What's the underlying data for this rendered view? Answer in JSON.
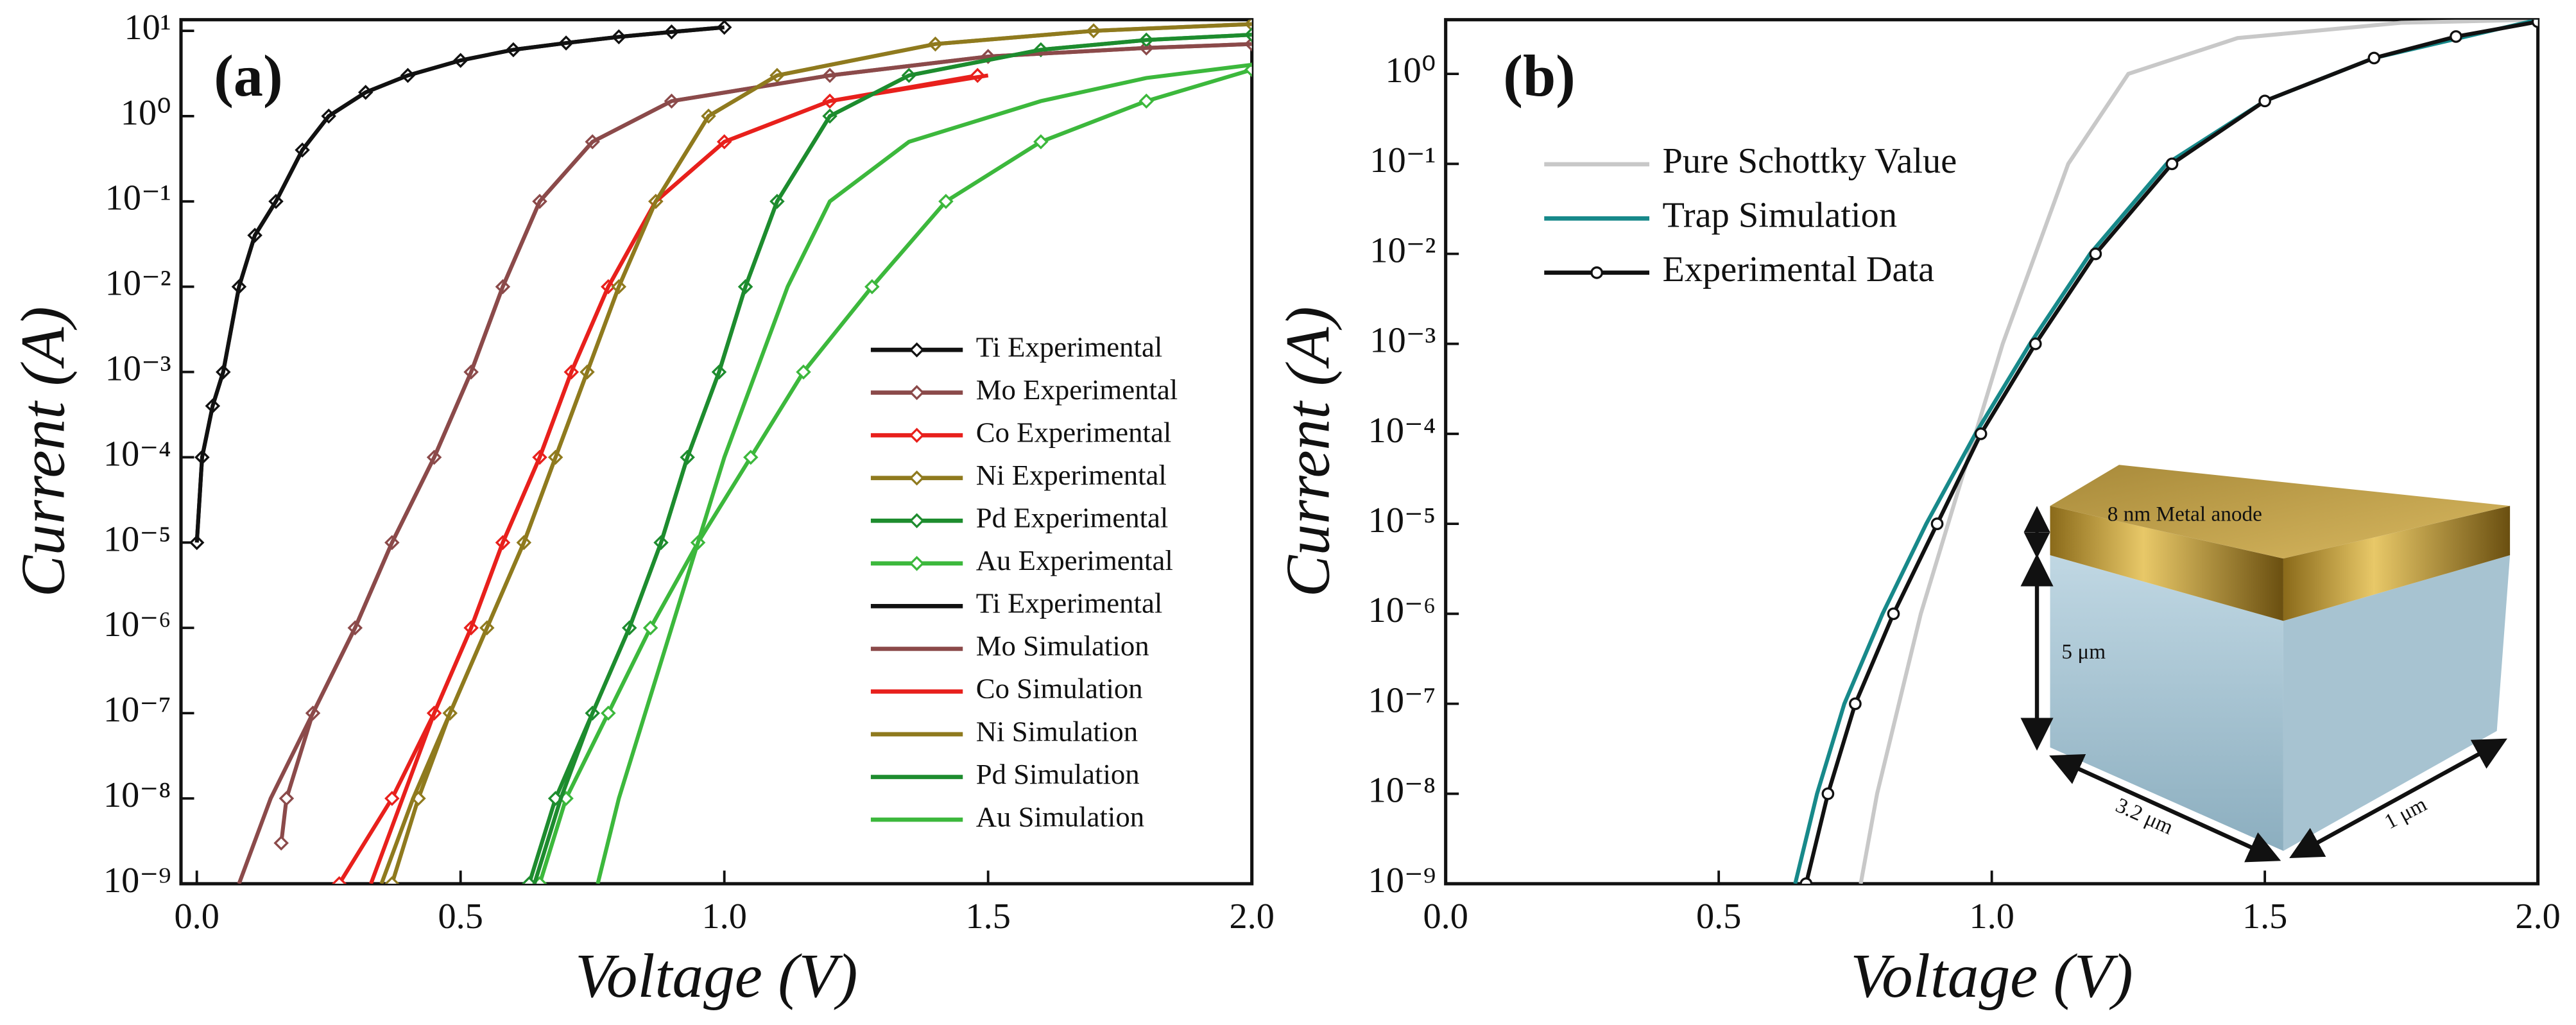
{
  "chart_data": [
    {
      "type": "line",
      "title": "(a)",
      "x_label": "Voltage (V)",
      "y_label": "Current (A)",
      "log_y": true,
      "xlim": [
        -0.03,
        2.0
      ],
      "ylim": [
        1e-09,
        13.5
      ],
      "xticks": [
        {
          "value": 0,
          "label": "0.0"
        },
        0.5,
        {
          "value": 1,
          "label": "1.0"
        },
        1.5,
        {
          "value": 2,
          "label": "2.0"
        }
      ],
      "yticks": [
        {
          "value": 1e-09,
          "label": "10⁻⁹"
        },
        {
          "value": 1e-08,
          "label": "10⁻⁸"
        },
        {
          "value": 1e-07,
          "label": "10⁻⁷"
        },
        {
          "value": 1e-06,
          "label": "10⁻⁶"
        },
        {
          "value": 1e-05,
          "label": "10⁻⁵"
        },
        {
          "value": 0.0001,
          "label": "10⁻⁴"
        },
        {
          "value": 0.001,
          "label": "10⁻³"
        },
        {
          "value": 0.01,
          "label": "10⁻²"
        },
        {
          "value": 0.1,
          "label": "10⁻¹"
        },
        {
          "value": 1,
          "label": "10⁰"
        },
        {
          "value": 10,
          "label": "10¹"
        }
      ],
      "legend": "right",
      "series": [
        {
          "name": "Ti Experimental",
          "color": "#111111",
          "marker": "diamond",
          "x": [
            0,
            0.01,
            0.03,
            0.05,
            0.08,
            0.11,
            0.15,
            0.2,
            0.25,
            0.32,
            0.4,
            0.5,
            0.6,
            0.7,
            0.8,
            0.9,
            1.0
          ],
          "values": [
            1e-05,
            0.0001,
            0.0004,
            0.001,
            0.01,
            0.04,
            0.1,
            0.4,
            1,
            1.9,
            3,
            4.5,
            6,
            7.2,
            8.5,
            9.7,
            11
          ]
        },
        {
          "name": "Mo Experimental",
          "color": "#8b4a4a",
          "marker": "diamond",
          "x": [
            0.16,
            0.17,
            0.22,
            0.3,
            0.37,
            0.45,
            0.52,
            0.58,
            0.65,
            0.75,
            0.9,
            1.2,
            1.5,
            1.8,
            2.0
          ],
          "values": [
            3e-09,
            1e-08,
            1e-07,
            1e-06,
            1e-05,
            0.0001,
            0.001,
            0.01,
            0.1,
            0.5,
            1.5,
            3,
            5,
            6.3,
            7
          ]
        },
        {
          "name": "Co Experimental",
          "color": "#e8201c",
          "marker": "diamond",
          "x": [
            0.27,
            0.37,
            0.45,
            0.52,
            0.58,
            0.65,
            0.71,
            0.78,
            0.87,
            1.0,
            1.2,
            1.48
          ],
          "values": [
            1e-09,
            1e-08,
            1e-07,
            1e-06,
            1e-05,
            0.0001,
            0.001,
            0.01,
            0.1,
            0.5,
            1.5,
            3
          ]
        },
        {
          "name": "Ni Experimental",
          "color": "#8f7a1e",
          "marker": "diamond",
          "x": [
            0.37,
            0.42,
            0.48,
            0.55,
            0.62,
            0.68,
            0.74,
            0.8,
            0.87,
            0.97,
            1.1,
            1.4,
            1.7,
            2.0
          ],
          "values": [
            1e-09,
            1e-08,
            1e-07,
            1e-06,
            1e-05,
            0.0001,
            0.001,
            0.01,
            0.1,
            1,
            3,
            7,
            10,
            12
          ]
        },
        {
          "name": "Pd Experimental",
          "color": "#1d8c2e",
          "marker": "diamond",
          "x": [
            0.63,
            0.68,
            0.75,
            0.82,
            0.88,
            0.93,
            0.99,
            1.04,
            1.1,
            1.2,
            1.35,
            1.6,
            1.8,
            2.0
          ],
          "values": [
            1e-09,
            1e-08,
            1e-07,
            1e-06,
            1e-05,
            0.0001,
            0.001,
            0.01,
            0.1,
            1,
            3,
            6,
            7.8,
            9
          ]
        },
        {
          "name": "Au Experimental",
          "color": "#3cb83c",
          "marker": "diamond",
          "x": [
            0.65,
            0.7,
            0.78,
            0.86,
            0.95,
            1.05,
            1.15,
            1.28,
            1.42,
            1.6,
            1.8,
            2.0
          ],
          "values": [
            1e-09,
            1e-08,
            1e-07,
            1e-06,
            1e-05,
            0.0001,
            0.001,
            0.01,
            0.1,
            0.5,
            1.5,
            3.5
          ]
        },
        {
          "name": "Ti Experimental",
          "color": "#111111",
          "x": [
            0,
            0.01,
            0.03,
            0.05,
            0.08,
            0.11,
            0.15,
            0.2,
            0.25,
            0.32,
            0.4,
            0.5,
            0.6,
            0.7,
            0.8,
            0.9,
            1.0
          ],
          "values": [
            1e-05,
            0.0001,
            0.0004,
            0.001,
            0.01,
            0.04,
            0.1,
            0.4,
            1,
            1.9,
            3,
            4.5,
            6,
            7.2,
            8.5,
            9.7,
            11
          ]
        },
        {
          "name": "Mo Simulation",
          "color": "#8b4a4a",
          "x": [
            0.08,
            0.14,
            0.22,
            0.3,
            0.37,
            0.45,
            0.52,
            0.58,
            0.65,
            0.75,
            0.9,
            1.2,
            1.5,
            1.8,
            2.0
          ],
          "values": [
            1e-09,
            1e-08,
            1e-07,
            1e-06,
            1e-05,
            0.0001,
            0.001,
            0.01,
            0.1,
            0.5,
            1.5,
            3,
            5,
            6.3,
            7
          ]
        },
        {
          "name": "Co Simulation",
          "color": "#e8201c",
          "x": [
            0.33,
            0.39,
            0.45,
            0.52,
            0.58,
            0.65,
            0.71,
            0.78,
            0.87,
            1.0,
            1.2,
            1.5
          ],
          "values": [
            1e-09,
            1e-08,
            1e-07,
            1e-06,
            1e-05,
            0.0001,
            0.001,
            0.01,
            0.1,
            0.5,
            1.5,
            3
          ]
        },
        {
          "name": "Ni Simulation",
          "color": "#8f7a1e",
          "x": [
            0.35,
            0.41,
            0.48,
            0.55,
            0.62,
            0.68,
            0.74,
            0.8,
            0.87,
            0.97,
            1.1,
            1.4,
            1.7,
            2.0
          ],
          "values": [
            1e-09,
            1e-08,
            1e-07,
            1e-06,
            1e-05,
            0.0001,
            0.001,
            0.01,
            0.1,
            1,
            3,
            7,
            10,
            12
          ]
        },
        {
          "name": "Pd Simulation",
          "color": "#1d8c2e",
          "x": [
            0.64,
            0.69,
            0.75,
            0.82,
            0.88,
            0.93,
            0.99,
            1.04,
            1.1,
            1.2,
            1.35,
            1.6,
            1.8,
            2.0
          ],
          "values": [
            1e-09,
            1e-08,
            1e-07,
            1e-06,
            1e-05,
            0.0001,
            0.001,
            0.01,
            0.1,
            1,
            3,
            6,
            7.8,
            9
          ]
        },
        {
          "name": "Au Simulation",
          "color": "#3cb83c",
          "x": [
            0.76,
            0.8,
            0.85,
            0.9,
            0.95,
            1.0,
            1.06,
            1.12,
            1.2,
            1.35,
            1.6,
            1.8,
            2.0
          ],
          "values": [
            1e-09,
            1e-08,
            1e-07,
            1e-06,
            1e-05,
            0.0001,
            0.001,
            0.01,
            0.1,
            0.5,
            1.5,
            2.8,
            4
          ]
        }
      ]
    },
    {
      "type": "line",
      "title": "(b)",
      "x_label": "Voltage (V)",
      "y_label": "Current (A)",
      "log_y": true,
      "xlim": [
        0,
        2.0
      ],
      "ylim": [
        1e-09,
        4
      ],
      "xticks": [
        {
          "value": 0,
          "label": "0.0"
        },
        0.5,
        {
          "value": 1,
          "label": "1.0"
        },
        1.5,
        {
          "value": 2,
          "label": "2.0"
        }
      ],
      "yticks": [
        {
          "value": 1e-09,
          "label": "10⁻⁹"
        },
        {
          "value": 1e-08,
          "label": "10⁻⁸"
        },
        {
          "value": 1e-07,
          "label": "10⁻⁷"
        },
        {
          "value": 1e-06,
          "label": "10⁻⁶"
        },
        {
          "value": 1e-05,
          "label": "10⁻⁵"
        },
        {
          "value": 0.0001,
          "label": "10⁻⁴"
        },
        {
          "value": 0.001,
          "label": "10⁻³"
        },
        {
          "value": 0.01,
          "label": "10⁻²"
        },
        {
          "value": 0.1,
          "label": "10⁻¹"
        },
        {
          "value": 1,
          "label": "10⁰"
        }
      ],
      "legend": "upper left",
      "annotations": [
        "8 nm Metal anode",
        "5 μm",
        "3.2 μm",
        "1 μm"
      ],
      "series": [
        {
          "name": "Pure Schottky Value",
          "color": "#c8c8c8",
          "x": [
            0.76,
            0.79,
            0.83,
            0.87,
            0.92,
            0.97,
            1.02,
            1.08,
            1.14,
            1.25,
            1.45,
            1.75,
            2.0
          ],
          "values": [
            1e-09,
            1e-08,
            1e-07,
            1e-06,
            1e-05,
            0.0001,
            0.001,
            0.01,
            0.1,
            1,
            2.5,
            3.7,
            4
          ]
        },
        {
          "name": "Trap Simulation",
          "color": "#17898a",
          "x": [
            0.64,
            0.68,
            0.73,
            0.8,
            0.88,
            0.97,
            1.07,
            1.18,
            1.32,
            1.5,
            1.7,
            2.0
          ],
          "values": [
            1e-09,
            1e-08,
            1e-07,
            1e-06,
            1e-05,
            0.0001,
            0.001,
            0.01,
            0.1,
            0.5,
            1.5,
            4
          ]
        },
        {
          "name": "Experimental Data",
          "color": "#111111",
          "marker": "circle",
          "x": [
            0.66,
            0.7,
            0.75,
            0.82,
            0.9,
            0.98,
            1.08,
            1.19,
            1.33,
            1.5,
            1.7,
            1.85,
            2.0
          ],
          "values": [
            1e-09,
            1e-08,
            1e-07,
            1e-06,
            1e-05,
            0.0001,
            0.001,
            0.01,
            0.1,
            0.5,
            1.5,
            2.6,
            3.8
          ]
        }
      ]
    }
  ]
}
